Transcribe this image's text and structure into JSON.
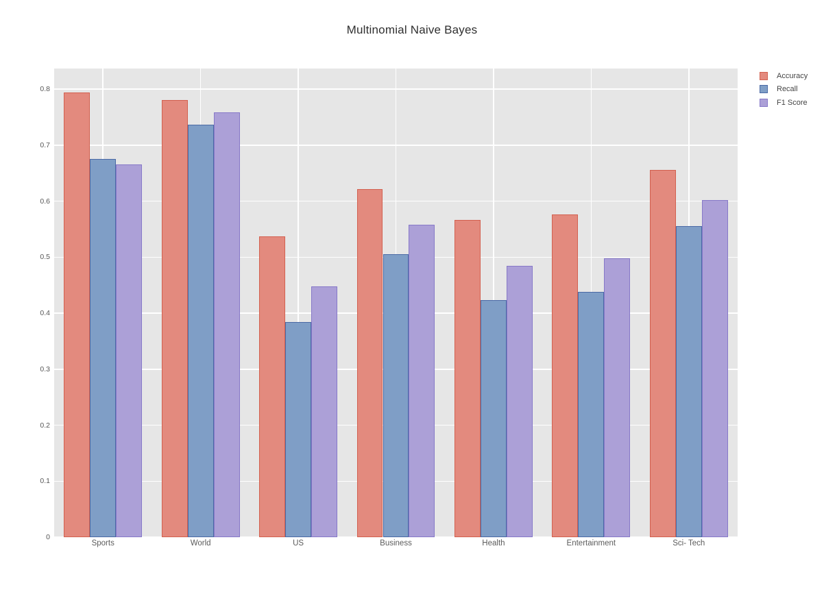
{
  "title": "Multinomial Naive Bayes",
  "colors": {
    "plot_background": "#e6e6e6",
    "gridline": "#ffffff",
    "page_background": "#ffffff",
    "title_text": "#2f2f2f",
    "tick_text": "#565656",
    "legend_text": "#444444"
  },
  "chart_data": {
    "type": "bar",
    "title": "Multinomial Naive Bayes",
    "categories": [
      "Sports",
      "World",
      "US",
      "Business",
      "Health",
      "Entertainment",
      "Sci- Tech"
    ],
    "series": [
      {
        "name": "Accuracy",
        "values": [
          0.794,
          0.781,
          0.537,
          0.622,
          0.566,
          0.576,
          0.656
        ],
        "fill": "#e38a7e",
        "border": "#d2604f"
      },
      {
        "name": "Recall",
        "values": [
          0.676,
          0.737,
          0.384,
          0.506,
          0.424,
          0.438,
          0.555
        ],
        "fill": "#7f9ec6",
        "border": "#4a69a5"
      },
      {
        "name": "F1 Score",
        "values": [
          0.666,
          0.759,
          0.448,
          0.558,
          0.485,
          0.498,
          0.602
        ],
        "fill": "#aca0d7",
        "border": "#8678c8"
      }
    ],
    "xlabel": "",
    "ylabel": "",
    "ylim": [
      0,
      0.837
    ],
    "yticks": [
      0,
      0.1,
      0.2,
      0.3,
      0.4,
      0.5,
      0.6,
      0.7,
      0.8
    ],
    "grid": "on",
    "grid_vertical_at_category_centers": true,
    "legend_position": "top-right",
    "bar_band_fraction": 0.8
  }
}
